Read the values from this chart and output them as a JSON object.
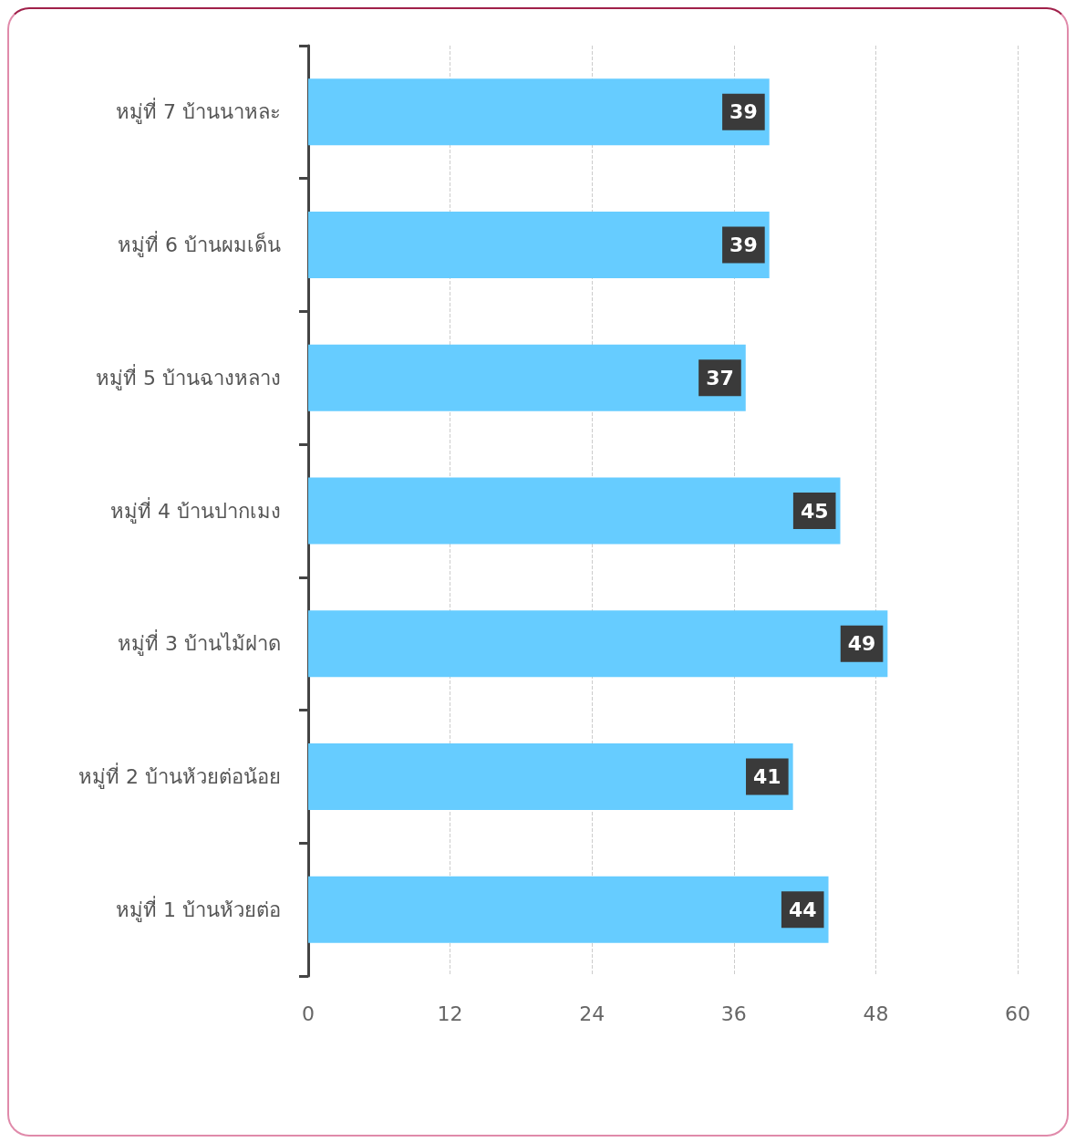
{
  "chart_data": {
    "type": "bar",
    "orientation": "horizontal",
    "categories": [
      "หมู่ที่ 7 บ้านนาหละ",
      "หมู่ที่ 6 บ้านผมเด็น",
      "หมู่ที่ 5 บ้านฉางหลาง",
      "หมู่ที่ 4 บ้านปากเมง",
      "หมู่ที่ 3 บ้านไม้ฝาด",
      "หมู่ที่ 2 บ้านห้วยต่อน้อย",
      "หมู่ที่ 1 บ้านห้วยต่อ"
    ],
    "values": [
      39,
      39,
      37,
      45,
      49,
      41,
      44
    ],
    "color": "#66ccff",
    "xlim": [
      0,
      60
    ],
    "xticks": [
      0,
      12,
      24,
      36,
      48,
      60
    ],
    "grid": "x",
    "data_labels": true
  }
}
